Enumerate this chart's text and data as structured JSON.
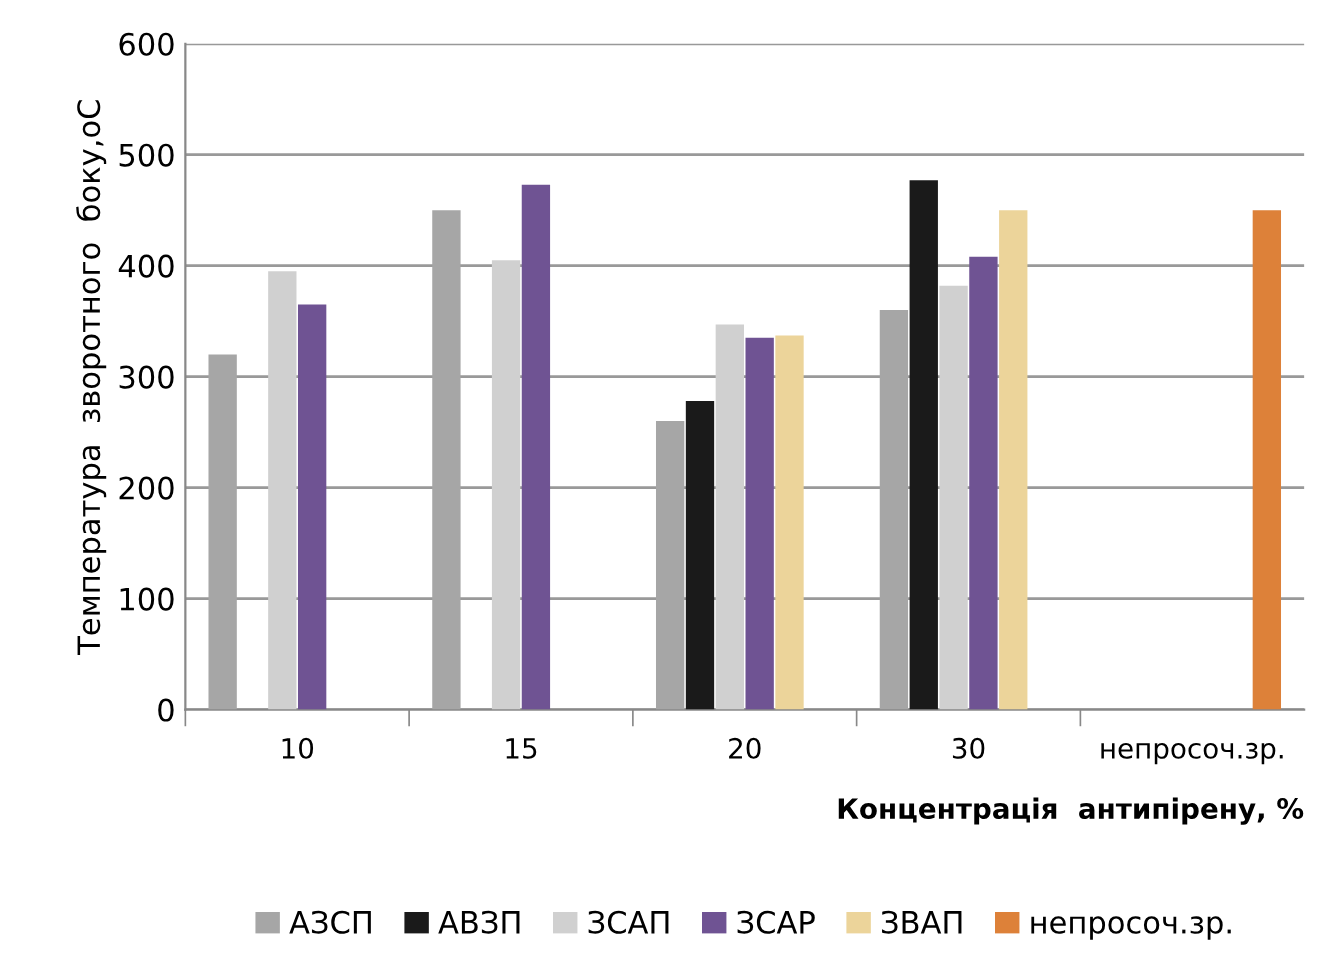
{
  "chart_data": {
    "type": "bar",
    "xlabel": "Концентрація  антипірену, %",
    "ylabel": "Температура  зворотного  боку,оС",
    "categories": [
      "10",
      "15",
      "20",
      "30",
      "непросоч.зр."
    ],
    "series": [
      {
        "name": "АЗСП",
        "color": "#a6a6a6",
        "values": [
          320,
          450,
          260,
          360,
          null
        ]
      },
      {
        "name": "АВЗП",
        "color": "#1a1a1a",
        "values": [
          null,
          null,
          278,
          477,
          null
        ]
      },
      {
        "name": "ЗСАП",
        "color": "#d0d0d0",
        "values": [
          395,
          405,
          347,
          382,
          null
        ]
      },
      {
        "name": "ЗСАР",
        "color": "#6f5393",
        "values": [
          365,
          473,
          335,
          408,
          null
        ]
      },
      {
        "name": "ЗВАП",
        "color": "#ecd49a",
        "values": [
          null,
          null,
          337,
          450,
          null
        ]
      },
      {
        "name": "непросоч.зр.",
        "color": "#dd8139",
        "values": [
          null,
          null,
          null,
          null,
          450
        ]
      }
    ],
    "ylim": [
      0,
      600
    ],
    "yticks": [
      0,
      100,
      200,
      300,
      400,
      500,
      600
    ],
    "grid": "y",
    "legend": "bottom"
  }
}
